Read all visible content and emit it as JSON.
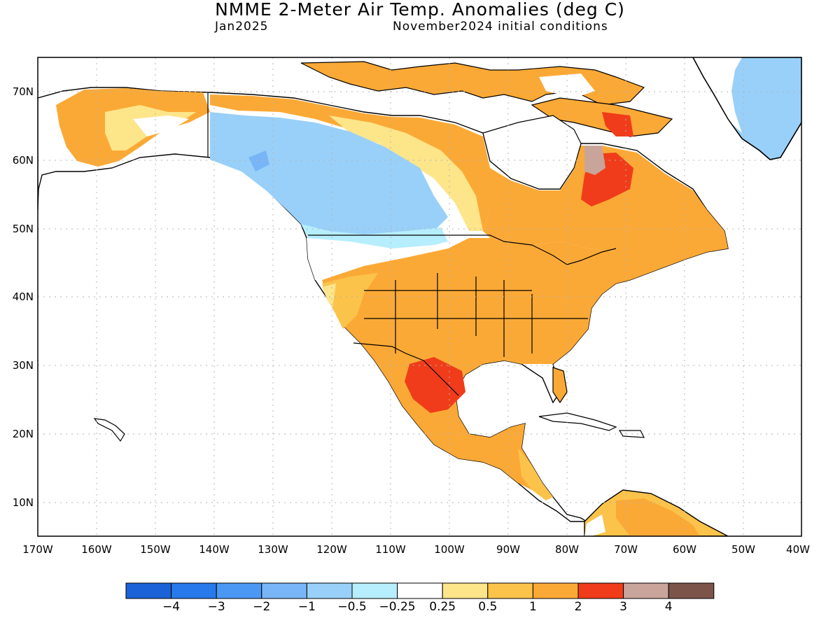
{
  "header": {
    "title": "NMME 2-Meter Air Temp. Anomalies (deg C)",
    "month": "Jan2025",
    "conditions": "November2024 initial conditions"
  },
  "map": {
    "lon_range": [
      -170,
      -40
    ],
    "lat_range": [
      5,
      75
    ],
    "lon_ticks": [
      "170W",
      "160W",
      "150W",
      "140W",
      "130W",
      "120W",
      "110W",
      "100W",
      "90W",
      "80W",
      "70W",
      "60W",
      "50W",
      "40W"
    ],
    "lat_ticks": [
      "70N",
      "60N",
      "50N",
      "40N",
      "30N",
      "20N",
      "10N"
    ],
    "grid": "dotted",
    "anomaly_regions": [
      {
        "region": "Alaska / northern Canada coast",
        "category": "1 to 2"
      },
      {
        "region": "Western Canada",
        "category": "-1 to -0.5"
      },
      {
        "region": "Pacific Northwest coast",
        "category": "-0.25 to 0.25"
      },
      {
        "region": "Central and eastern United States",
        "category": "1 to 2"
      },
      {
        "region": "Texas / northern Mexico",
        "category": "2 to 3"
      },
      {
        "region": "Northern Quebec",
        "category": "2 to 3"
      },
      {
        "region": "Labrador interior",
        "category": "3 to 4"
      },
      {
        "region": "Greenland",
        "category": "-1 to -0.5"
      },
      {
        "region": "Northern South America",
        "category": "0.5 to 1"
      }
    ]
  },
  "colorbar": {
    "colors": [
      "#1b62d6",
      "#2879ea",
      "#4b97f4",
      "#78b5f7",
      "#99d0f9",
      "#b6eefd",
      "#ffffff",
      "#fde58a",
      "#fcc34a",
      "#fba936",
      "#f03c1a",
      "#c9a49a",
      "#7d5449"
    ],
    "labels": [
      "-4",
      "-3",
      "-2",
      "-1",
      "-0.5",
      "-0.25",
      "0.25",
      "0.5",
      "1",
      "2",
      "3",
      "4"
    ]
  },
  "colors": {
    "warm": "#fba936",
    "cold": "#99d0f9",
    "hot": "#f03c1a"
  }
}
